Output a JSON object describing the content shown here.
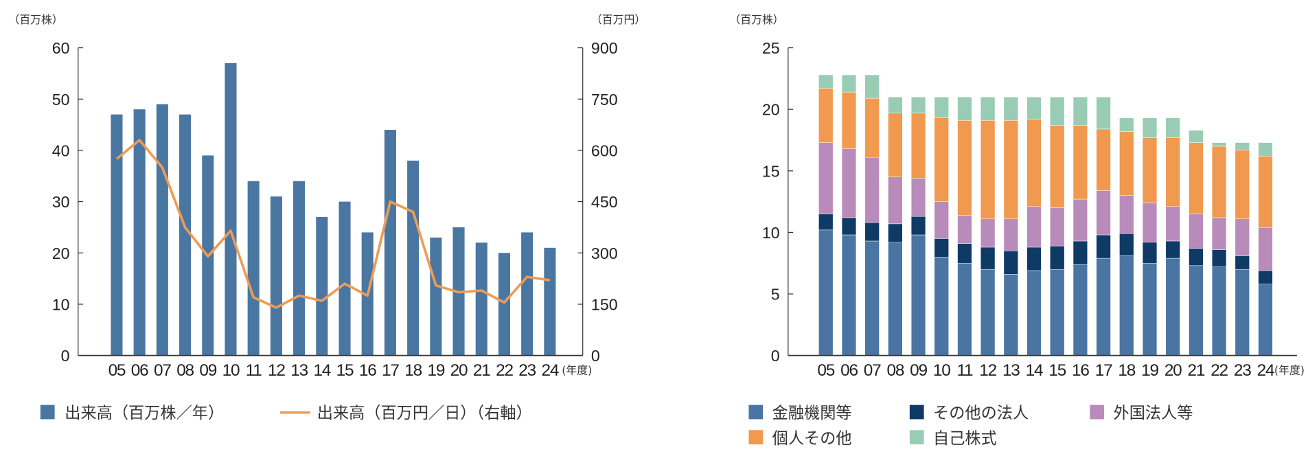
{
  "chart_data": [
    {
      "type": "bar+line",
      "y_unit_left": "（百万株）",
      "y_unit_right": "（百万円）",
      "x_unit": "(年度)",
      "categories": [
        "05",
        "06",
        "07",
        "08",
        "09",
        "10",
        "11",
        "12",
        "13",
        "14",
        "15",
        "16",
        "17",
        "18",
        "19",
        "20",
        "21",
        "22",
        "23",
        "24"
      ],
      "ylim_left": [
        0,
        60
      ],
      "yticks_left": [
        0,
        10,
        20,
        30,
        40,
        50,
        60
      ],
      "ylim_right": [
        0,
        900
      ],
      "yticks_right": [
        0,
        150,
        300,
        450,
        600,
        750,
        900
      ],
      "series": [
        {
          "name": "出来高（百万株／年）",
          "type": "bar",
          "axis": "left",
          "color": "#4a76a2",
          "values": [
            47,
            48,
            49,
            47,
            39,
            57,
            34,
            31,
            34,
            27,
            30,
            24,
            44,
            38,
            23,
            25,
            22,
            20,
            24,
            21
          ]
        },
        {
          "name": "出来高（百万円／日）（右軸）",
          "type": "line",
          "axis": "right",
          "color": "#ee9c55",
          "values": [
            575,
            630,
            550,
            375,
            290,
            365,
            170,
            140,
            175,
            160,
            210,
            175,
            450,
            420,
            205,
            185,
            190,
            155,
            230,
            220
          ]
        }
      ],
      "grid": false,
      "legend": "bottom"
    },
    {
      "type": "stacked-bar",
      "y_unit": "（百万株）",
      "x_unit": "(年度)",
      "categories": [
        "05",
        "06",
        "07",
        "08",
        "09",
        "10",
        "11",
        "12",
        "13",
        "14",
        "15",
        "16",
        "17",
        "18",
        "19",
        "20",
        "21",
        "22",
        "23",
        "24"
      ],
      "ylim": [
        0,
        25
      ],
      "yticks": [
        0,
        5,
        10,
        15,
        20,
        25
      ],
      "series": [
        {
          "name": "金融機関等",
          "color": "#4a75a3",
          "values": [
            10.2,
            9.8,
            9.3,
            9.2,
            9.8,
            8.0,
            7.5,
            7.0,
            6.6,
            6.9,
            7.0,
            7.4,
            7.9,
            8.1,
            7.5,
            7.9,
            7.3,
            7.2,
            7.0,
            5.8
          ]
        },
        {
          "name": "その他の法人",
          "color": "#0e3a66",
          "values": [
            1.3,
            1.4,
            1.5,
            1.5,
            1.5,
            1.5,
            1.6,
            1.8,
            1.9,
            1.9,
            1.9,
            1.9,
            1.9,
            1.8,
            1.7,
            1.4,
            1.4,
            1.4,
            1.1,
            1.1
          ]
        },
        {
          "name": "外国法人等",
          "color": "#b88bba",
          "values": [
            5.8,
            5.6,
            5.3,
            3.8,
            3.1,
            3.0,
            2.3,
            2.3,
            2.6,
            3.3,
            3.1,
            3.4,
            3.6,
            3.1,
            3.2,
            2.8,
            2.8,
            2.6,
            3.0,
            3.5
          ]
        },
        {
          "name": "個人その他",
          "color": "#f0994f",
          "values": [
            4.4,
            4.6,
            4.8,
            5.2,
            5.3,
            6.8,
            7.7,
            8.0,
            8.0,
            7.1,
            6.7,
            6.0,
            5.0,
            5.2,
            5.3,
            5.6,
            5.8,
            5.8,
            5.6,
            5.8
          ]
        },
        {
          "name": "自己株式",
          "color": "#99ccb5",
          "values": [
            1.1,
            1.4,
            1.9,
            1.3,
            1.3,
            1.7,
            1.9,
            1.9,
            1.9,
            1.8,
            2.3,
            2.3,
            2.6,
            1.1,
            1.6,
            1.6,
            1.0,
            0.3,
            0.6,
            1.1
          ]
        }
      ],
      "grid": false,
      "legend": "bottom"
    }
  ]
}
